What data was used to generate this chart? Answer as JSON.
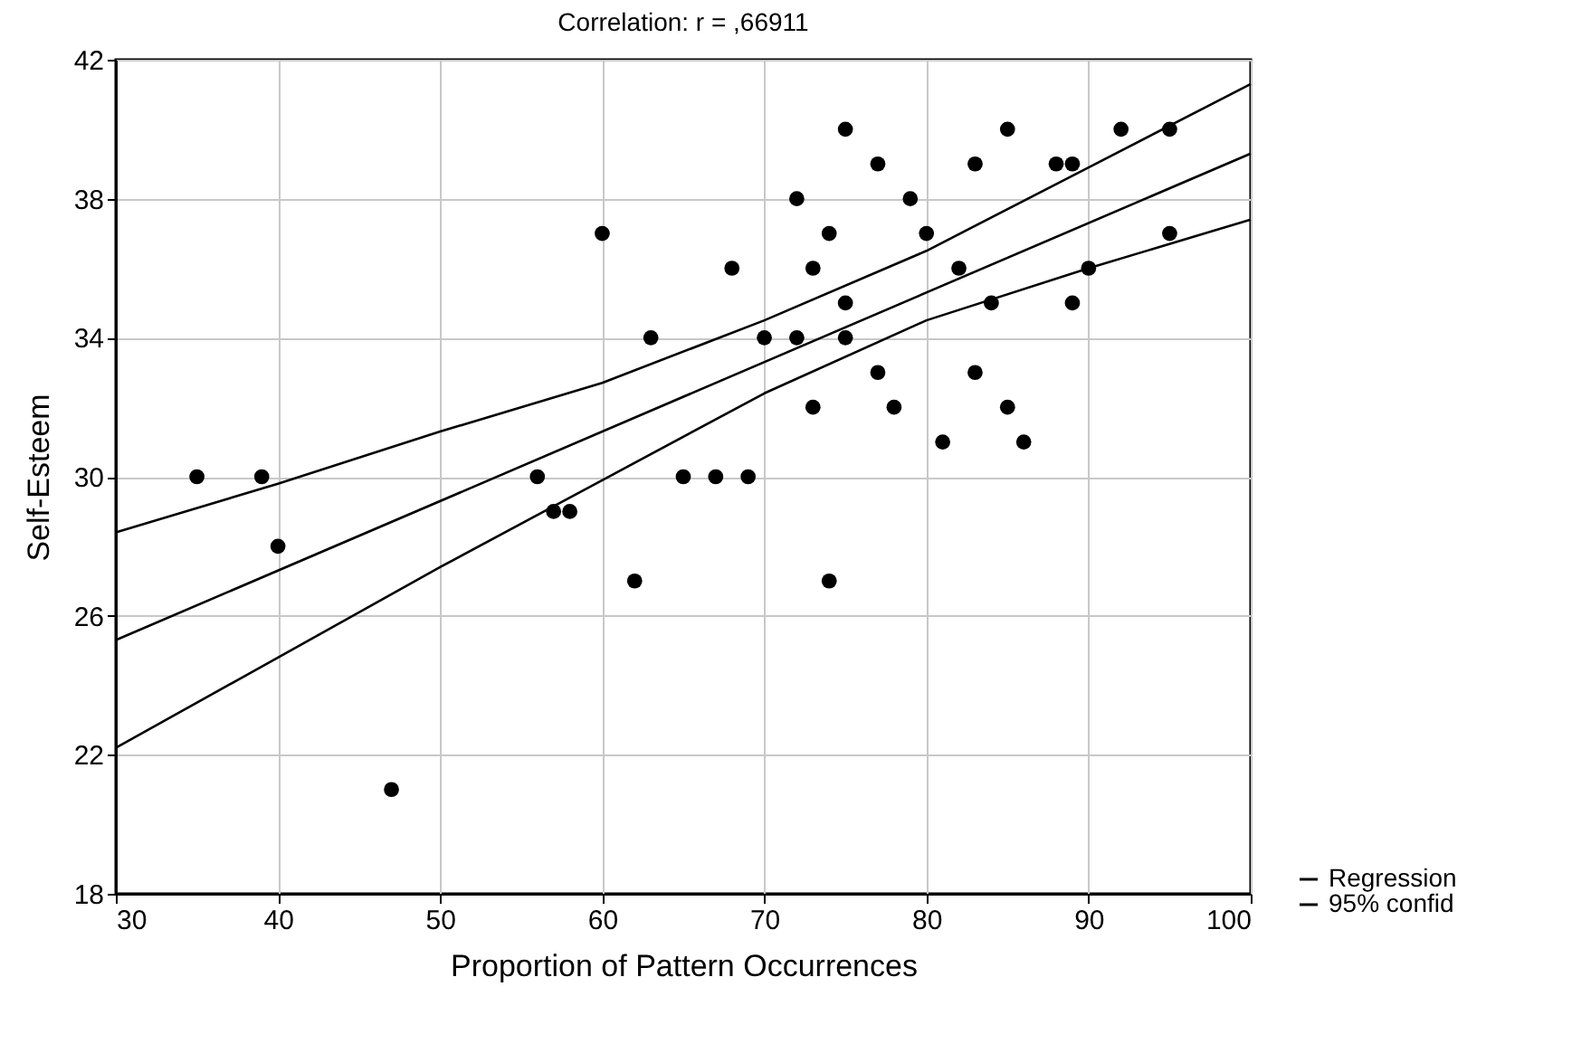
{
  "chart_data": {
    "type": "scatter",
    "title": "Correlation: r = ,66911",
    "xlabel": "Proportion of Pattern Occurrences",
    "ylabel": "Self-Esteem",
    "xlim": [
      30,
      100
    ],
    "ylim": [
      18,
      42
    ],
    "xticks": [
      30,
      40,
      50,
      60,
      70,
      80,
      90,
      100
    ],
    "yticks": [
      18,
      22,
      26,
      30,
      34,
      38,
      42
    ],
    "grid": true,
    "legend": "bottom right",
    "series": [
      {
        "marker": "circle",
        "color": "#000000",
        "x": [
          35,
          39,
          40,
          47,
          56,
          57,
          58,
          60,
          62,
          63,
          65,
          67,
          68,
          69,
          70,
          72,
          72,
          73,
          73,
          74,
          74,
          75,
          75,
          75,
          77,
          77,
          78,
          79,
          80,
          81,
          82,
          83,
          83,
          84,
          85,
          85,
          86,
          88,
          89,
          89,
          90,
          92,
          95,
          95
        ],
        "values": [
          30,
          30,
          28,
          21,
          30,
          29,
          29,
          37,
          27,
          34,
          30,
          30,
          36,
          30,
          34,
          38,
          34,
          36,
          32,
          37,
          27,
          40,
          35,
          34,
          39,
          33,
          32,
          38,
          37,
          31,
          36,
          39,
          33,
          35,
          40,
          32,
          31,
          39,
          39,
          35,
          36,
          40,
          40,
          37
        ]
      },
      {
        "type": "line",
        "marker": "none",
        "name": "Regression",
        "color": "#000000",
        "x": [
          30,
          100
        ],
        "values": [
          25.3,
          39.3
        ]
      },
      {
        "type": "line",
        "marker": "none",
        "name": "95% confid",
        "color": "#000000",
        "x": [
          30,
          40,
          50,
          60,
          70,
          80,
          90,
          100
        ],
        "values": [
          28.4,
          29.8,
          31.3,
          32.7,
          34.5,
          36.5,
          38.9,
          41.3
        ]
      },
      {
        "type": "line",
        "marker": "none",
        "color": "#000000",
        "x": [
          30,
          40,
          50,
          60,
          70,
          80,
          90,
          100
        ],
        "values": [
          22.2,
          24.8,
          27.4,
          29.9,
          32.4,
          34.5,
          36.0,
          37.4
        ]
      }
    ]
  }
}
